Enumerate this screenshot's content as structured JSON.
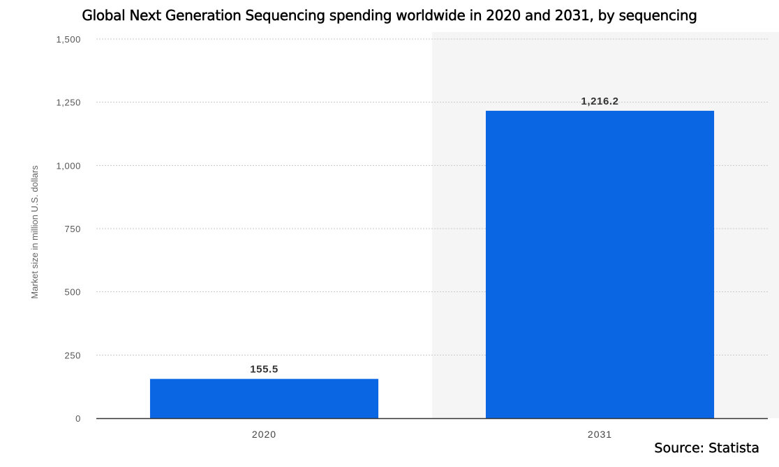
{
  "chart_data": {
    "type": "bar",
    "title": "Global Next Generation Sequencing spending worldwide in 2020 and 2031, by sequencing",
    "xlabel": "",
    "ylabel": "Market size in million U.S. dollars",
    "categories": [
      "2020",
      "2031"
    ],
    "values": [
      155.5,
      1216.2
    ],
    "value_labels": [
      "155.5",
      "1,216.2"
    ],
    "ylim": [
      0,
      1500
    ],
    "yticks": [
      {
        "value": 0,
        "label": "0"
      },
      {
        "value": 250,
        "label": "250"
      },
      {
        "value": 500,
        "label": "500"
      },
      {
        "value": 750,
        "label": "750"
      },
      {
        "value": 1000,
        "label": "1,000"
      },
      {
        "value": 1250,
        "label": "1,250"
      },
      {
        "value": 1500,
        "label": "1,500"
      }
    ],
    "grid": true,
    "highlighted_category": "2031",
    "bar_color": "#0b66e4",
    "highlight_background": "#f5f5f5"
  },
  "source": "Source: Statista"
}
